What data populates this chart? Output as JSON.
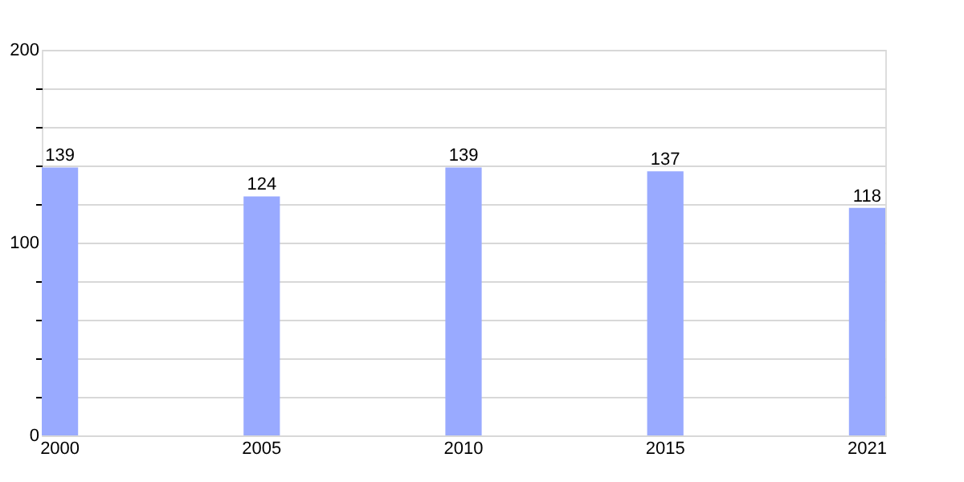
{
  "chart_data": {
    "type": "bar",
    "categories": [
      "2000",
      "2005",
      "2010",
      "2015",
      "2021"
    ],
    "values": [
      139,
      124,
      139,
      137,
      118
    ],
    "color": "#99aaff",
    "ylim": [
      0,
      200
    ],
    "yticks": [
      0,
      {
        "value": 20,
        "label": null
      },
      {
        "value": 40,
        "label": null
      },
      {
        "value": 60,
        "label": null
      },
      {
        "value": 80,
        "label": null
      },
      100,
      {
        "value": 120,
        "label": null
      },
      {
        "value": 140,
        "label": null
      },
      {
        "value": 160,
        "label": null
      },
      {
        "value": 180,
        "label": null
      },
      200
    ],
    "grid": true,
    "data_labels": true
  }
}
